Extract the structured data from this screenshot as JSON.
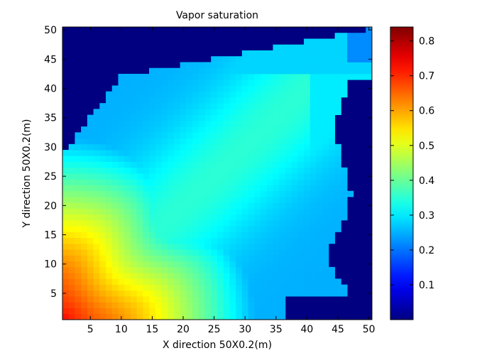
{
  "chart_data": {
    "type": "heatmap",
    "title": "Vapor saturation",
    "xlabel": "X direction 50X0.2(m)",
    "ylabel": "Y direction 50X0.2(m)",
    "xlim": [
      0.5,
      50.5
    ],
    "ylim": [
      0.5,
      50.5
    ],
    "x_ticks": [
      5,
      10,
      15,
      20,
      25,
      30,
      35,
      40,
      45,
      50
    ],
    "y_ticks": [
      5,
      10,
      15,
      20,
      25,
      30,
      35,
      40,
      45,
      50
    ],
    "grid_size": [
      50,
      50
    ],
    "colormap": "jet",
    "colorbar": {
      "range": [
        0.0,
        0.84
      ],
      "ticks": [
        0.1,
        0.2,
        0.3,
        0.4,
        0.5,
        0.6,
        0.7,
        0.8
      ],
      "tick_labels": [
        "0.1",
        "0.2",
        "0.3",
        "0.4",
        "0.5",
        "0.6",
        "0.7",
        "0.8"
      ]
    },
    "field_estimate": {
      "description_values": {
        "background": 0.0,
        "lower_left_peak": 0.8,
        "central_band": 0.3,
        "right_plume": 0.25
      }
    }
  }
}
